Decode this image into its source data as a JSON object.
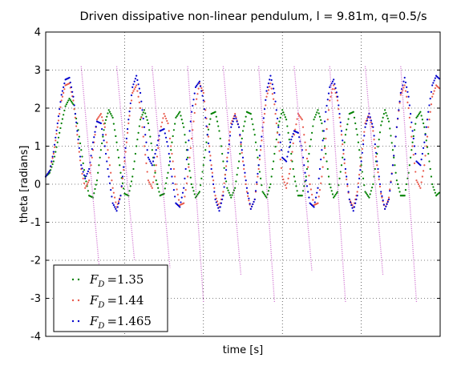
{
  "chart_data": {
    "type": "scatter",
    "title": "Driven dissipative non-linear pendulum, l = 9.81m, q=0.5/s",
    "xlabel": "time [s]",
    "ylabel": "theta [radians]",
    "ylim": [
      -4,
      4
    ],
    "xlim": [
      0,
      100
    ],
    "x_tick_labels_shown": false,
    "y_ticks": [
      -4,
      -3,
      -2,
      -1,
      0,
      1,
      2,
      3,
      4
    ],
    "y_tick_labels": [
      "-4",
      "-3",
      "-2",
      "-1",
      "0",
      "1",
      "2",
      "3",
      "4"
    ],
    "grid": true,
    "legend_position": "lower-left",
    "marker": "dots",
    "series": [
      {
        "name": "F_D = 1.35",
        "legend_symbol": "F",
        "legend_subscript": "D",
        "legend_value": "=1.35",
        "color": "#008000",
        "x": [
          0,
          1,
          2,
          3,
          4,
          5,
          6,
          7,
          8,
          9,
          10,
          11,
          12,
          13,
          14,
          15,
          16,
          17,
          18,
          19,
          20,
          21,
          22,
          23,
          24,
          25,
          26,
          27,
          28,
          29,
          30,
          31,
          32,
          33,
          34,
          35,
          36,
          37,
          38,
          39,
          40,
          41,
          42,
          43,
          44,
          45,
          46,
          47,
          48,
          49,
          50,
          51,
          52,
          53,
          54,
          55,
          56,
          57,
          58,
          59,
          60,
          61,
          62,
          63,
          64,
          65,
          66,
          67,
          68,
          69,
          70,
          71,
          72,
          73,
          74,
          75,
          76,
          77,
          78,
          79,
          80,
          81,
          82,
          83,
          84,
          85,
          86,
          87,
          88,
          89,
          90,
          91,
          92,
          93,
          94,
          95,
          96,
          97,
          98,
          99,
          100
        ],
        "y": [
          0.2,
          0.3,
          0.6,
          1.1,
          1.6,
          2.05,
          2.25,
          2.1,
          1.6,
          0.9,
          0.2,
          -0.3,
          -0.35,
          0.1,
          0.9,
          1.6,
          1.95,
          1.75,
          1.1,
          0.3,
          -0.25,
          -0.3,
          0.2,
          1.0,
          1.7,
          1.95,
          1.6,
          0.9,
          0.1,
          -0.3,
          -0.25,
          0.3,
          1.1,
          1.75,
          1.9,
          1.5,
          0.7,
          0.0,
          -0.35,
          -0.2,
          0.5,
          1.3,
          1.85,
          1.9,
          1.4,
          0.6,
          -0.1,
          -0.35,
          -0.1,
          0.6,
          1.4,
          1.9,
          1.85,
          1.3,
          0.5,
          -0.2,
          -0.35,
          0.0,
          0.8,
          1.55,
          1.95,
          1.7,
          1.0,
          0.2,
          -0.3,
          -0.3,
          0.2,
          1.0,
          1.7,
          1.95,
          1.6,
          0.8,
          0.0,
          -0.35,
          -0.2,
          0.5,
          1.3,
          1.85,
          1.9,
          1.3,
          0.5,
          -0.2,
          -0.35,
          0.0,
          0.8,
          1.55,
          1.95,
          1.65,
          0.9,
          0.1,
          -0.3,
          -0.3,
          0.3,
          1.1,
          1.75,
          1.9,
          1.5,
          0.8,
          0.0,
          -0.3,
          -0.2
        ]
      },
      {
        "name": "F_D = 1.44",
        "legend_symbol": "F",
        "legend_subscript": "D",
        "legend_value": "=1.44",
        "color": "#e8584a",
        "x": [
          0,
          1,
          2,
          3,
          4,
          5,
          6,
          7,
          8,
          9,
          10,
          11,
          12,
          13,
          14,
          15,
          16,
          17,
          18,
          19,
          20,
          21,
          22,
          23,
          24,
          25,
          26,
          27,
          28,
          29,
          30,
          31,
          32,
          33,
          34,
          35,
          36,
          37,
          38,
          39,
          40,
          41,
          42,
          43,
          44,
          45,
          46,
          47,
          48,
          49,
          50,
          51,
          52,
          53,
          54,
          55,
          56,
          57,
          58,
          59,
          60,
          61,
          62,
          63,
          64,
          65,
          66,
          67,
          68,
          69,
          70,
          71,
          72,
          73,
          74,
          75,
          76,
          77,
          78,
          79,
          80,
          81,
          82,
          83,
          84,
          85,
          86,
          87,
          88,
          89,
          90,
          91,
          92,
          93,
          94,
          95,
          96,
          97,
          98,
          99,
          100
        ],
        "y": [
          0.2,
          0.35,
          0.8,
          1.5,
          2.2,
          2.6,
          2.65,
          2.2,
          1.3,
          0.4,
          -0.1,
          0.1,
          0.9,
          1.7,
          1.85,
          1.5,
          0.7,
          -0.1,
          -0.6,
          -0.3,
          0.6,
          1.6,
          2.4,
          2.6,
          2.0,
          1.0,
          0.1,
          -0.1,
          0.5,
          1.4,
          1.85,
          1.6,
          0.8,
          0.0,
          -0.55,
          -0.5,
          0.2,
          1.2,
          2.1,
          2.65,
          2.4,
          1.5,
          0.5,
          -0.3,
          -0.6,
          -0.2,
          0.7,
          1.6,
          1.85,
          1.5,
          0.6,
          -0.2,
          -0.65,
          -0.4,
          0.4,
          1.4,
          2.3,
          2.65,
          2.1,
          1.1,
          0.2,
          -0.1,
          0.4,
          1.3,
          1.85,
          1.7,
          0.9,
          0.0,
          -0.55,
          -0.5,
          0.2,
          1.2,
          2.2,
          2.6,
          2.2,
          1.3,
          0.3,
          -0.4,
          -0.6,
          -0.2,
          0.7,
          1.6,
          1.85,
          1.4,
          0.5,
          -0.25,
          -0.65,
          -0.35,
          0.5,
          1.5,
          2.35,
          2.6,
          2.0,
          1.0,
          0.1,
          -0.1,
          0.5,
          1.5,
          2.3,
          2.6,
          2.5
        ]
      },
      {
        "name": "F_D = 1.465",
        "legend_symbol": "F",
        "legend_subscript": "D",
        "legend_value": "=1.465",
        "color": "#0000cc",
        "x": [
          0,
          1,
          2,
          3,
          4,
          5,
          6,
          7,
          8,
          9,
          10,
          11,
          12,
          13,
          14,
          15,
          16,
          17,
          18,
          19,
          20,
          21,
          22,
          23,
          24,
          25,
          26,
          27,
          28,
          29,
          30,
          31,
          32,
          33,
          34,
          35,
          36,
          37,
          38,
          39,
          40,
          41,
          42,
          43,
          44,
          45,
          46,
          47,
          48,
          49,
          50,
          51,
          52,
          53,
          54,
          55,
          56,
          57,
          58,
          59,
          60,
          61,
          62,
          63,
          64,
          65,
          66,
          67,
          68,
          69,
          70,
          71,
          72,
          73,
          74,
          75,
          76,
          77,
          78,
          79,
          80,
          81,
          82,
          83,
          84,
          85,
          86,
          87,
          88,
          89,
          90,
          91,
          92,
          93,
          94,
          95,
          96,
          97,
          98,
          99,
          100
        ],
        "y": [
          0.2,
          0.35,
          0.85,
          1.6,
          2.35,
          2.75,
          2.8,
          2.3,
          1.4,
          0.5,
          0.15,
          0.4,
          1.1,
          1.65,
          1.6,
          1.0,
          0.2,
          -0.5,
          -0.7,
          -0.3,
          0.7,
          1.7,
          2.55,
          2.85,
          2.4,
          1.5,
          0.7,
          0.5,
          0.9,
          1.4,
          1.45,
          1.0,
          0.2,
          -0.5,
          -0.6,
          -0.1,
          0.9,
          1.9,
          2.55,
          2.7,
          2.2,
          1.3,
          0.4,
          -0.4,
          -0.7,
          -0.3,
          0.6,
          1.5,
          1.8,
          1.5,
          0.7,
          -0.1,
          -0.65,
          -0.4,
          0.5,
          1.5,
          2.45,
          2.85,
          2.4,
          1.5,
          0.7,
          0.6,
          1.1,
          1.4,
          1.35,
          0.9,
          0.1,
          -0.5,
          -0.6,
          -0.1,
          0.9,
          1.9,
          2.55,
          2.75,
          2.3,
          1.4,
          0.4,
          -0.4,
          -0.7,
          -0.3,
          0.6,
          1.5,
          1.85,
          1.5,
          0.6,
          -0.2,
          -0.65,
          -0.4,
          0.5,
          1.5,
          2.4,
          2.8,
          2.3,
          1.4,
          0.6,
          0.5,
          1.1,
          1.9,
          2.6,
          2.85,
          2.75
        ]
      }
    ],
    "wrap_segments": {
      "color": "#cc66cc",
      "segments": [
        {
          "x0": 9.0,
          "y0": 3.1,
          "x1": 13.5,
          "y1": -2.1
        },
        {
          "x0": 18.0,
          "y0": 3.1,
          "x1": 22.5,
          "y1": -2.0
        },
        {
          "x0": 27.0,
          "y0": 3.1,
          "x1": 31.5,
          "y1": -2.2
        },
        {
          "x0": 36.0,
          "y0": 3.1,
          "x1": 40.0,
          "y1": -3.1
        },
        {
          "x0": 45.0,
          "y0": 3.1,
          "x1": 49.5,
          "y1": -2.4
        },
        {
          "x0": 54.0,
          "y0": 3.1,
          "x1": 58.0,
          "y1": -3.1
        },
        {
          "x0": 63.0,
          "y0": 3.1,
          "x1": 67.5,
          "y1": -2.3
        },
        {
          "x0": 72.0,
          "y0": 3.1,
          "x1": 76.0,
          "y1": -3.1
        },
        {
          "x0": 81.0,
          "y0": 3.1,
          "x1": 85.5,
          "y1": -2.4
        },
        {
          "x0": 90.0,
          "y0": 3.1,
          "x1": 94.0,
          "y1": -3.1
        }
      ]
    }
  }
}
